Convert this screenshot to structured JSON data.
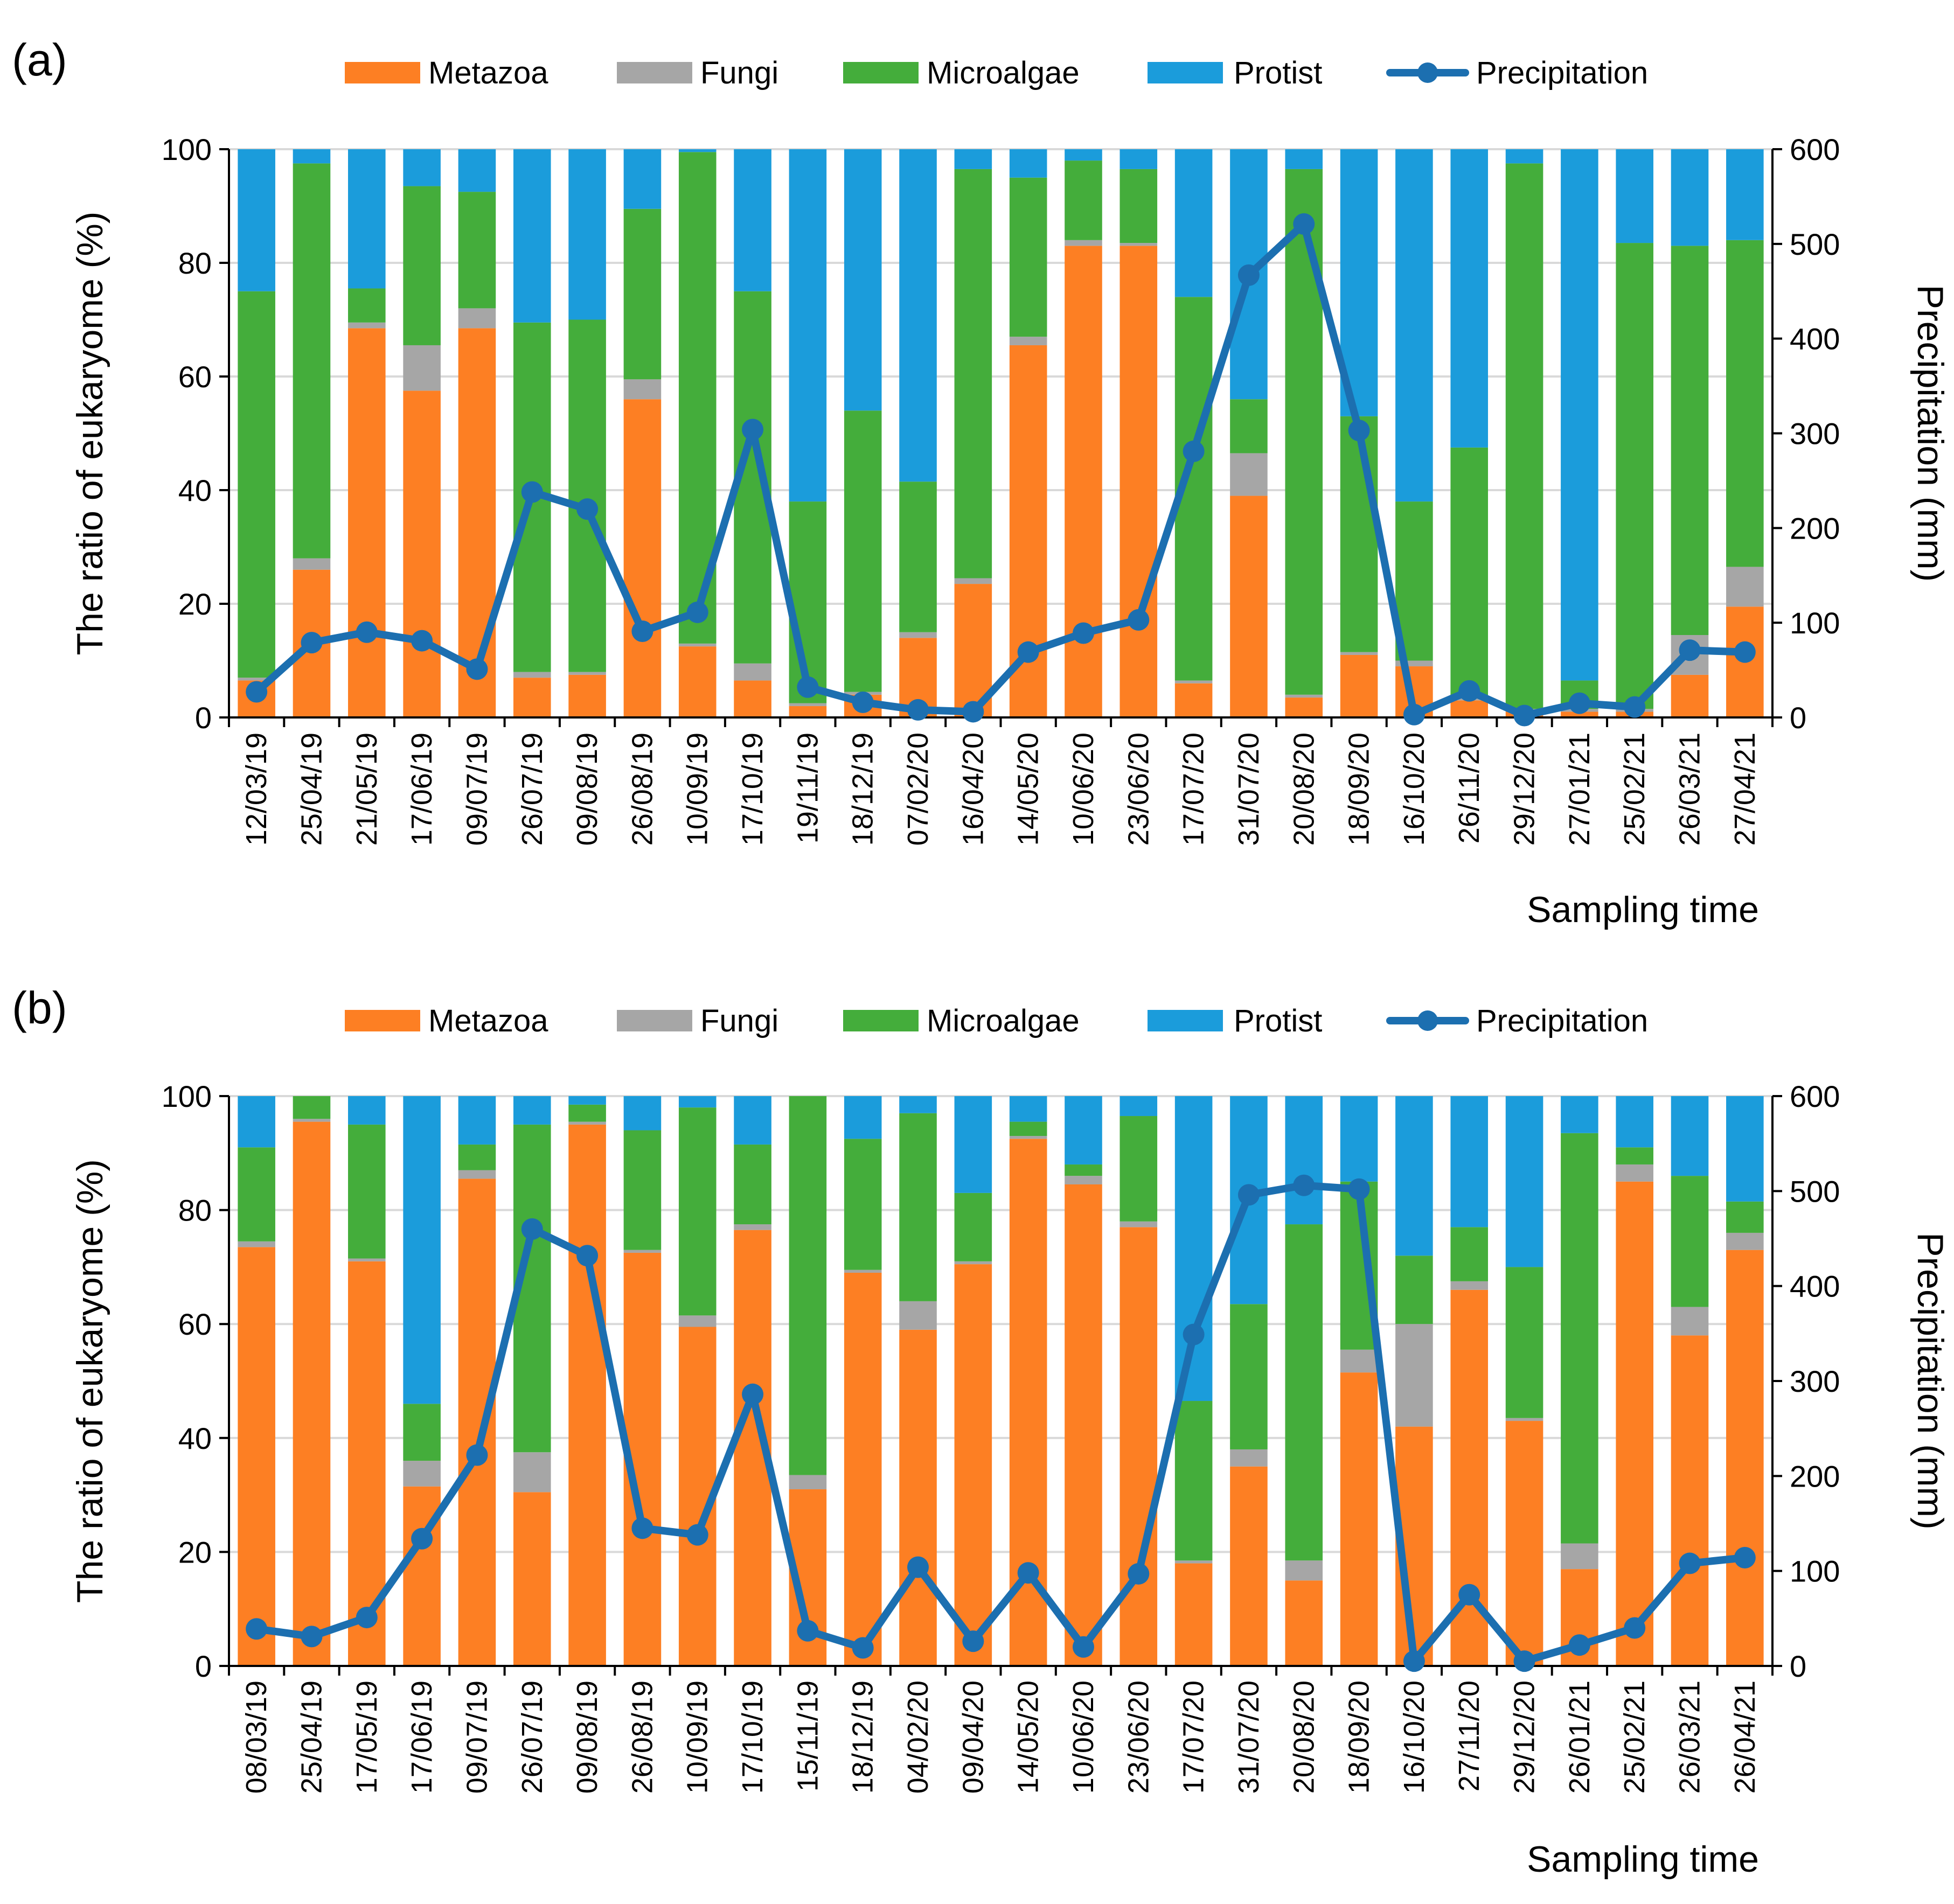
{
  "chart_data": [
    {
      "panel_label": "(a)",
      "type": "bar",
      "stacked": true,
      "combo_line": "Precipitation",
      "xlabel": "Sampling time",
      "ylabel": "The ratio of eukaryome (%)",
      "y2label": "Precipitation (mm)",
      "ylim": [
        0,
        100
      ],
      "y2lim": [
        0,
        600
      ],
      "yticks": [
        "0",
        "20",
        "40",
        "60",
        "80",
        "100"
      ],
      "y2ticks": [
        "0",
        "100",
        "200",
        "300",
        "400",
        "500",
        "600"
      ],
      "legend_position": "top",
      "grid": true,
      "categories": [
        "12/03/19",
        "25/04/19",
        "21/05/19",
        "17/06/19",
        "09/07/19",
        "26/07/19",
        "09/08/19",
        "26/08/19",
        "10/09/19",
        "17/10/19",
        "19/11/19",
        "18/12/19",
        "07/02/20",
        "16/04/20",
        "14/05/20",
        "10/06/20",
        "23/06/20",
        "17/07/20",
        "31/07/20",
        "20/08/20",
        "18/09/20",
        "16/10/20",
        "26/11/20",
        "29/12/20",
        "27/01/21",
        "25/02/21",
        "26/03/21",
        "27/04/21"
      ],
      "series": [
        {
          "name": "Metazoa",
          "values": [
            6.5,
            26,
            68.5,
            57.5,
            68.5,
            7,
            7.5,
            56,
            12.5,
            6.5,
            2,
            4,
            14,
            23.5,
            65.5,
            83,
            83,
            6,
            39,
            3.5,
            11,
            9,
            3,
            1,
            1,
            1,
            7.5,
            19.5
          ]
        },
        {
          "name": "Fungi",
          "values": [
            0.5,
            2,
            1,
            8,
            3.5,
            1,
            0.5,
            3.5,
            0.5,
            3,
            0.5,
            0.5,
            1,
            1,
            1.5,
            1,
            0.5,
            0.5,
            7.5,
            0.5,
            0.5,
            1,
            0.5,
            0.5,
            0.5,
            0.5,
            7,
            7
          ]
        },
        {
          "name": "Microalgae",
          "values": [
            68,
            69.5,
            6,
            28,
            20.5,
            61.5,
            62,
            30,
            86.5,
            65.5,
            35.5,
            49.5,
            26.5,
            72,
            28,
            14,
            13,
            67.5,
            9.5,
            92.5,
            41.5,
            28,
            44,
            96,
            5,
            82,
            68.5,
            57.5
          ]
        },
        {
          "name": "Protist",
          "values": [
            25,
            2.5,
            24.5,
            6.5,
            7.5,
            30.5,
            30,
            10.5,
            0.5,
            25,
            62,
            46,
            58.5,
            3.5,
            5,
            2,
            3.5,
            26,
            44,
            3.5,
            47,
            62,
            52.5,
            2.5,
            93.5,
            16.5,
            17,
            16
          ]
        }
      ],
      "precipitation": [
        27,
        79,
        90,
        81,
        51,
        238,
        220,
        91,
        111,
        304,
        32,
        16,
        8,
        6,
        69,
        89,
        103,
        281,
        467,
        521,
        303,
        3,
        28,
        2,
        15,
        11,
        71,
        69
      ]
    },
    {
      "panel_label": "(b)",
      "type": "bar",
      "stacked": true,
      "combo_line": "Precipitation",
      "xlabel": "Sampling time",
      "ylabel": "The ratio of eukaryome (%)",
      "y2label": "Precipitation (mm)",
      "ylim": [
        0,
        100
      ],
      "y2lim": [
        0,
        600
      ],
      "yticks": [
        "0",
        "20",
        "40",
        "60",
        "80",
        "100"
      ],
      "y2ticks": [
        "0",
        "100",
        "200",
        "300",
        "400",
        "500",
        "600"
      ],
      "legend_position": "top",
      "grid": true,
      "categories": [
        "08/03/19",
        "25/04/19",
        "17/05/19",
        "17/06/19",
        "09/07/19",
        "26/07/19",
        "09/08/19",
        "26/08/19",
        "10/09/19",
        "17/10/19",
        "15/11/19",
        "18/12/19",
        "04/02/20",
        "09/04/20",
        "14/05/20",
        "10/06/20",
        "23/06/20",
        "17/07/20",
        "31/07/20",
        "20/08/20",
        "18/09/20",
        "16/10/20",
        "27/11/20",
        "29/12/20",
        "26/01/21",
        "25/02/21",
        "26/03/21",
        "26/04/21"
      ],
      "series": [
        {
          "name": "Metazoa",
          "values": [
            73.5,
            95.5,
            71,
            31.5,
            85.5,
            30.5,
            95,
            72.5,
            59.5,
            76.5,
            31,
            69,
            59,
            70.5,
            92.5,
            84.5,
            77,
            18,
            35,
            15,
            51.5,
            42,
            66,
            43,
            17,
            85,
            58,
            73
          ]
        },
        {
          "name": "Fungi",
          "values": [
            1,
            0.5,
            0.5,
            4.5,
            1.5,
            7,
            0.5,
            0.5,
            2,
            1,
            2.5,
            0.5,
            5,
            0.5,
            0.5,
            1.5,
            1,
            0.5,
            3,
            3.5,
            4,
            18,
            1.5,
            0.5,
            4.5,
            3,
            5,
            3
          ]
        },
        {
          "name": "Microalgae",
          "values": [
            16.5,
            4,
            23.5,
            10,
            4.5,
            57.5,
            3,
            21,
            36.5,
            14,
            66.5,
            23,
            33,
            12,
            2.5,
            2,
            18.5,
            28,
            25.5,
            59,
            29.5,
            12,
            9.5,
            26.5,
            72,
            3,
            23,
            5.5
          ]
        },
        {
          "name": "Protist",
          "values": [
            9,
            0,
            5,
            54,
            8.5,
            5,
            1.5,
            6,
            2,
            8.5,
            0,
            7.5,
            3,
            17,
            4.5,
            12,
            3.5,
            53.5,
            36.5,
            22.5,
            15,
            28,
            23,
            30,
            6.5,
            9,
            14,
            18.5
          ]
        }
      ],
      "precipitation": [
        39,
        31,
        51,
        134,
        222,
        460,
        432,
        145,
        138,
        286,
        37,
        19,
        104,
        26,
        98,
        20,
        97,
        349,
        496,
        506,
        502,
        5,
        75,
        5,
        22,
        40,
        108,
        114
      ]
    }
  ],
  "colors": {
    "Metazoa": "#fd7f23",
    "Fungi": "#a6a6a6",
    "Microalgae": "#44ad3b",
    "Protist": "#1b9cdb",
    "Precipitation": "#1c6fb0"
  }
}
